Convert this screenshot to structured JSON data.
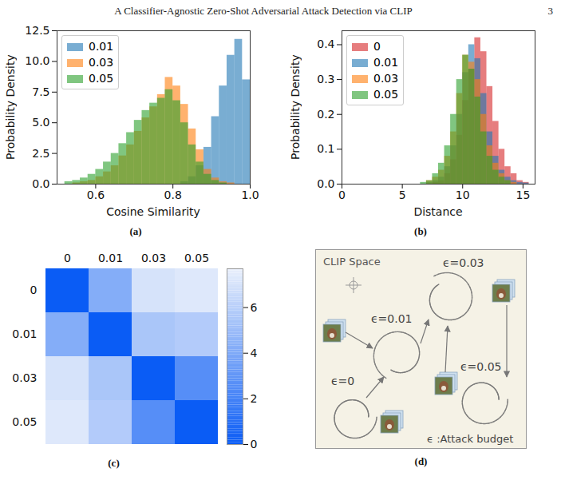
{
  "header": {
    "title": "A Classifier-Agnostic Zero-Shot Adversarial Attack Detection via CLIP",
    "page": 3
  },
  "chart_data": [
    {
      "type": "histogram",
      "caption": "(a)",
      "x_label": "Cosine Similarity",
      "y_label": "Probability Density",
      "xlim": [
        0.5,
        1.0
      ],
      "xticks": [
        0.6,
        0.8,
        {
          "value": 1,
          "label": "1.0"
        }
      ],
      "ylim": [
        0,
        12.5
      ],
      "yticks": [
        {
          "value": 0,
          "label": "0.0"
        },
        2.5,
        {
          "value": 5,
          "label": "5.0"
        },
        7.5,
        {
          "value": 10,
          "label": "10.0"
        },
        12.5
      ],
      "legend": "upper left",
      "bins": [
        0.52,
        0.54,
        0.56,
        0.58,
        0.6,
        0.62,
        0.64,
        0.66,
        0.68,
        0.7,
        0.72,
        0.74,
        0.76,
        0.78,
        0.8,
        0.82,
        0.84,
        0.86,
        0.88,
        0.9,
        0.92,
        0.94,
        0.96,
        0.98,
        1.0
      ],
      "series": [
        {
          "name": "0.01",
          "color": "#1f77b4",
          "values": [
            0,
            0,
            0,
            0,
            0,
            0,
            0,
            0,
            0,
            0,
            0,
            0,
            0,
            0,
            0,
            0.2,
            0.6,
            1.5,
            3,
            5.5,
            8,
            10.5,
            11.8,
            8.5
          ]
        },
        {
          "name": "0.03",
          "color": "#ff7f0e",
          "values": [
            0,
            0.1,
            0.2,
            0.3,
            0.6,
            1.0,
            1.5,
            2.3,
            3.2,
            4.3,
            5.4,
            6.3,
            7.3,
            8.7,
            8.0,
            6.5,
            4.5,
            2.8,
            1.2,
            0.5,
            0.2,
            0.1,
            0,
            0
          ]
        },
        {
          "name": "0.05",
          "color": "#2ca02c",
          "values": [
            0.2,
            0.3,
            0.5,
            0.8,
            1.2,
            1.8,
            2.5,
            3.3,
            4.2,
            5.2,
            6.0,
            6.6,
            7.0,
            7.7,
            6.8,
            5.0,
            3.2,
            1.8,
            0.8,
            0.3,
            0.1,
            0,
            0,
            0
          ]
        }
      ]
    },
    {
      "type": "histogram",
      "caption": "(b)",
      "x_label": "Distance",
      "y_label": "Probability Density",
      "xlim": [
        0,
        16
      ],
      "xticks": [
        0,
        5,
        10,
        15
      ],
      "ylim": [
        0,
        0.44
      ],
      "yticks": [
        {
          "value": 0,
          "label": "0.0"
        },
        0.1,
        0.2,
        0.3,
        0.4
      ],
      "legend": "upper left",
      "bins": [
        6.5,
        7,
        7.5,
        8,
        8.5,
        9,
        9.5,
        10,
        10.5,
        11,
        11.5,
        12,
        12.5,
        13,
        13.5,
        14,
        14.5,
        15,
        15.5
      ],
      "series": [
        {
          "name": "0",
          "color": "#d62728",
          "values": [
            0,
            0,
            0.005,
            0.01,
            0.03,
            0.07,
            0.14,
            0.24,
            0.33,
            0.42,
            0.38,
            0.28,
            0.18,
            0.1,
            0.05,
            0.03,
            0.01,
            0.005
          ]
        },
        {
          "name": "0.01",
          "color": "#1f77b4",
          "values": [
            0,
            0.005,
            0.01,
            0.02,
            0.05,
            0.11,
            0.2,
            0.32,
            0.4,
            0.36,
            0.26,
            0.15,
            0.08,
            0.04,
            0.02,
            0.01,
            0.005,
            0.003
          ]
        },
        {
          "name": "0.03",
          "color": "#ff7f0e",
          "values": [
            0,
            0.01,
            0.02,
            0.04,
            0.08,
            0.15,
            0.26,
            0.37,
            0.35,
            0.3,
            0.2,
            0.11,
            0.06,
            0.03,
            0.01,
            0.005,
            0,
            0
          ]
        },
        {
          "name": "0.05",
          "color": "#2ca02c",
          "values": [
            0.005,
            0.01,
            0.03,
            0.06,
            0.11,
            0.2,
            0.3,
            0.37,
            0.33,
            0.25,
            0.15,
            0.08,
            0.04,
            0.02,
            0.01,
            0,
            0,
            0
          ]
        }
      ]
    },
    {
      "type": "heatmap",
      "caption": "(c)",
      "categories": [
        "0",
        "0.01",
        "0.03",
        "0.05"
      ],
      "cells": [
        [
          0,
          4.2,
          7.0,
          7.3
        ],
        [
          4.2,
          0,
          5.5,
          5.8
        ],
        [
          7.0,
          5.5,
          0,
          2.6
        ],
        [
          7.3,
          5.8,
          2.6,
          0
        ]
      ],
      "colorbar": {
        "range": [
          0,
          7.7
        ],
        "ticks": [
          0,
          2,
          4,
          6
        ]
      }
    }
  ],
  "diagram": {
    "caption": "(d)",
    "title": "CLIP Space",
    "clusters": [
      "ϵ=0",
      "ϵ=0.01",
      "ϵ=0.03",
      "ϵ=0.05"
    ],
    "key": "ϵ :Attack budget"
  }
}
